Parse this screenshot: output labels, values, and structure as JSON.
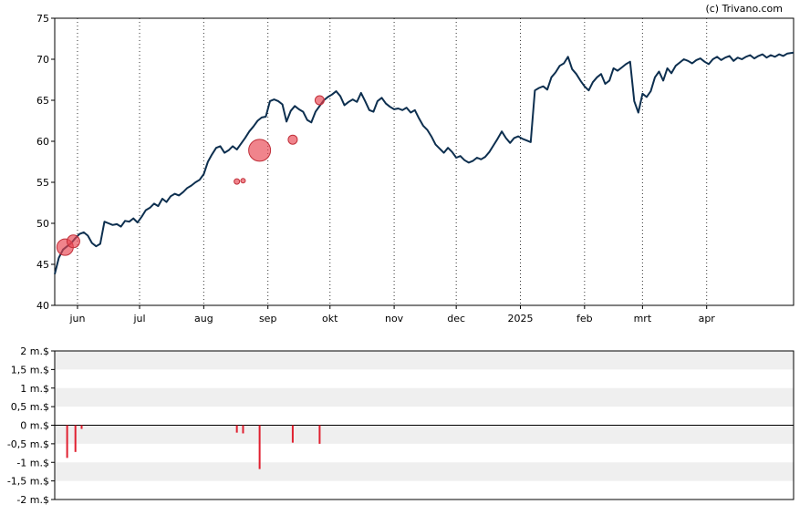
{
  "copyright": "(c) Trivano.com",
  "chart_data": [
    {
      "type": "line",
      "title": "",
      "xlabel": "",
      "ylabel": "",
      "ylim": [
        40,
        75
      ],
      "yticks": [
        40,
        45,
        50,
        55,
        60,
        65,
        70,
        75
      ],
      "band_color": "#efefef",
      "line_color": "#0d2f4f",
      "bubble_color": "#e8424f",
      "grid": "vertical dotted at month starts",
      "x_range": [
        0,
        357
      ],
      "month_ticks": [
        {
          "label": "jun",
          "day": 11
        },
        {
          "label": "jul",
          "day": 41
        },
        {
          "label": "aug",
          "day": 72
        },
        {
          "label": "sep",
          "day": 103
        },
        {
          "label": "okt",
          "day": 133
        },
        {
          "label": "nov",
          "day": 164
        },
        {
          "label": "dec",
          "day": 194
        },
        {
          "label": "2025",
          "day": 225
        },
        {
          "label": "feb",
          "day": 256
        },
        {
          "label": "mrt",
          "day": 284
        },
        {
          "label": "apr",
          "day": 315
        }
      ],
      "series": [
        {
          "values": [
            [
              0,
              43.8
            ],
            [
              2,
              45.8
            ],
            [
              4,
              46.8
            ],
            [
              6,
              47.2
            ],
            [
              8,
              47.6
            ],
            [
              10,
              48.2
            ],
            [
              12,
              48.7
            ],
            [
              14,
              48.9
            ],
            [
              16,
              48.5
            ],
            [
              18,
              47.6
            ],
            [
              20,
              47.2
            ],
            [
              22,
              47.5
            ],
            [
              24,
              50.2
            ],
            [
              26,
              50.0
            ],
            [
              28,
              49.8
            ],
            [
              30,
              49.9
            ],
            [
              32,
              49.6
            ],
            [
              34,
              50.3
            ],
            [
              36,
              50.2
            ],
            [
              38,
              50.6
            ],
            [
              40,
              50.1
            ],
            [
              42,
              50.8
            ],
            [
              44,
              51.6
            ],
            [
              46,
              51.9
            ],
            [
              48,
              52.4
            ],
            [
              50,
              52.1
            ],
            [
              52,
              53.0
            ],
            [
              54,
              52.6
            ],
            [
              56,
              53.3
            ],
            [
              58,
              53.6
            ],
            [
              60,
              53.4
            ],
            [
              62,
              53.8
            ],
            [
              64,
              54.3
            ],
            [
              66,
              54.6
            ],
            [
              68,
              55.0
            ],
            [
              70,
              55.3
            ],
            [
              72,
              56.0
            ],
            [
              74,
              57.5
            ],
            [
              76,
              58.4
            ],
            [
              78,
              59.2
            ],
            [
              80,
              59.4
            ],
            [
              82,
              58.6
            ],
            [
              84,
              58.9
            ],
            [
              86,
              59.4
            ],
            [
              88,
              59.0
            ],
            [
              90,
              59.7
            ],
            [
              92,
              60.4
            ],
            [
              94,
              61.2
            ],
            [
              96,
              61.8
            ],
            [
              98,
              62.5
            ],
            [
              100,
              62.9
            ],
            [
              102,
              63.0
            ],
            [
              104,
              64.9
            ],
            [
              106,
              65.1
            ],
            [
              108,
              64.9
            ],
            [
              110,
              64.5
            ],
            [
              112,
              62.4
            ],
            [
              114,
              63.7
            ],
            [
              116,
              64.3
            ],
            [
              118,
              63.9
            ],
            [
              120,
              63.6
            ],
            [
              122,
              62.6
            ],
            [
              124,
              62.3
            ],
            [
              126,
              63.6
            ],
            [
              128,
              64.3
            ],
            [
              130,
              65.0
            ],
            [
              132,
              65.4
            ],
            [
              134,
              65.7
            ],
            [
              136,
              66.1
            ],
            [
              138,
              65.5
            ],
            [
              140,
              64.4
            ],
            [
              142,
              64.8
            ],
            [
              144,
              65.1
            ],
            [
              146,
              64.8
            ],
            [
              148,
              65.9
            ],
            [
              150,
              64.9
            ],
            [
              152,
              63.8
            ],
            [
              154,
              63.6
            ],
            [
              156,
              64.9
            ],
            [
              158,
              65.3
            ],
            [
              160,
              64.6
            ],
            [
              162,
              64.2
            ],
            [
              164,
              63.9
            ],
            [
              166,
              64.0
            ],
            [
              168,
              63.8
            ],
            [
              170,
              64.1
            ],
            [
              172,
              63.5
            ],
            [
              174,
              63.8
            ],
            [
              176,
              62.8
            ],
            [
              178,
              61.9
            ],
            [
              180,
              61.4
            ],
            [
              182,
              60.6
            ],
            [
              184,
              59.6
            ],
            [
              186,
              59.1
            ],
            [
              188,
              58.6
            ],
            [
              190,
              59.2
            ],
            [
              192,
              58.7
            ],
            [
              194,
              58.0
            ],
            [
              196,
              58.2
            ],
            [
              198,
              57.7
            ],
            [
              200,
              57.4
            ],
            [
              202,
              57.6
            ],
            [
              204,
              58.0
            ],
            [
              206,
              57.8
            ],
            [
              208,
              58.1
            ],
            [
              210,
              58.7
            ],
            [
              212,
              59.5
            ],
            [
              214,
              60.3
            ],
            [
              216,
              61.2
            ],
            [
              218,
              60.4
            ],
            [
              220,
              59.8
            ],
            [
              222,
              60.4
            ],
            [
              224,
              60.6
            ],
            [
              226,
              60.3
            ],
            [
              228,
              60.1
            ],
            [
              230,
              59.9
            ],
            [
              232,
              66.2
            ],
            [
              234,
              66.5
            ],
            [
              236,
              66.7
            ],
            [
              238,
              66.3
            ],
            [
              240,
              67.8
            ],
            [
              242,
              68.4
            ],
            [
              244,
              69.2
            ],
            [
              246,
              69.5
            ],
            [
              248,
              70.3
            ],
            [
              250,
              68.8
            ],
            [
              252,
              68.2
            ],
            [
              254,
              67.4
            ],
            [
              256,
              66.7
            ],
            [
              258,
              66.2
            ],
            [
              260,
              67.2
            ],
            [
              262,
              67.8
            ],
            [
              264,
              68.2
            ],
            [
              266,
              67.0
            ],
            [
              268,
              67.4
            ],
            [
              270,
              68.9
            ],
            [
              272,
              68.6
            ],
            [
              274,
              69.0
            ],
            [
              276,
              69.4
            ],
            [
              278,
              69.7
            ],
            [
              280,
              64.9
            ],
            [
              282,
              63.5
            ],
            [
              284,
              65.8
            ],
            [
              286,
              65.4
            ],
            [
              288,
              66.1
            ],
            [
              290,
              67.8
            ],
            [
              292,
              68.5
            ],
            [
              294,
              67.4
            ],
            [
              296,
              68.9
            ],
            [
              298,
              68.3
            ],
            [
              300,
              69.2
            ],
            [
              302,
              69.6
            ],
            [
              304,
              70.0
            ],
            [
              306,
              69.8
            ],
            [
              308,
              69.5
            ],
            [
              310,
              69.9
            ],
            [
              312,
              70.1
            ],
            [
              314,
              69.7
            ],
            [
              316,
              69.4
            ],
            [
              318,
              70.0
            ],
            [
              320,
              70.3
            ],
            [
              322,
              69.9
            ],
            [
              324,
              70.2
            ],
            [
              326,
              70.4
            ],
            [
              328,
              69.8
            ],
            [
              330,
              70.2
            ],
            [
              332,
              70.0
            ],
            [
              334,
              70.3
            ],
            [
              336,
              70.5
            ],
            [
              338,
              70.1
            ],
            [
              340,
              70.4
            ],
            [
              342,
              70.6
            ],
            [
              344,
              70.2
            ],
            [
              346,
              70.5
            ],
            [
              348,
              70.3
            ],
            [
              350,
              70.6
            ],
            [
              352,
              70.4
            ],
            [
              354,
              70.7
            ],
            [
              357,
              70.8
            ]
          ]
        }
      ],
      "bubbles": [
        {
          "day": 5,
          "y": 47.1,
          "size": 9
        },
        {
          "day": 9,
          "y": 47.8,
          "size": 7
        },
        {
          "day": 88,
          "y": 55.1,
          "size": 3
        },
        {
          "day": 91,
          "y": 55.2,
          "size": 2.5
        },
        {
          "day": 99,
          "y": 58.9,
          "size": 12
        },
        {
          "day": 115,
          "y": 60.2,
          "size": 5
        },
        {
          "day": 128,
          "y": 65.0,
          "size": 5
        }
      ]
    },
    {
      "type": "bar",
      "title": "",
      "ylim": [
        -2,
        2
      ],
      "yticks": [
        {
          "value": 2,
          "label": "2 m.$"
        },
        {
          "value": 1.5,
          "label": "1,5 m.$"
        },
        {
          "value": 1,
          "label": "1 m.$"
        },
        {
          "value": 0.5,
          "label": "0,5 m.$"
        },
        {
          "value": 0,
          "label": "0 m.$"
        },
        {
          "value": -0.5,
          "label": "-0,5 m.$"
        },
        {
          "value": -1,
          "label": "-1 m.$"
        },
        {
          "value": -1.5,
          "label": "-1,5 m.$"
        },
        {
          "value": -2,
          "label": "-2 m.$"
        }
      ],
      "bar_color": "#e02030",
      "bars": [
        {
          "day": 6,
          "value": -0.88
        },
        {
          "day": 10,
          "value": -0.72
        },
        {
          "day": 13,
          "value": -0.1
        },
        {
          "day": 88,
          "value": -0.2
        },
        {
          "day": 91,
          "value": -0.22
        },
        {
          "day": 99,
          "value": -1.18
        },
        {
          "day": 115,
          "value": -0.47
        },
        {
          "day": 128,
          "value": -0.5
        }
      ]
    }
  ]
}
